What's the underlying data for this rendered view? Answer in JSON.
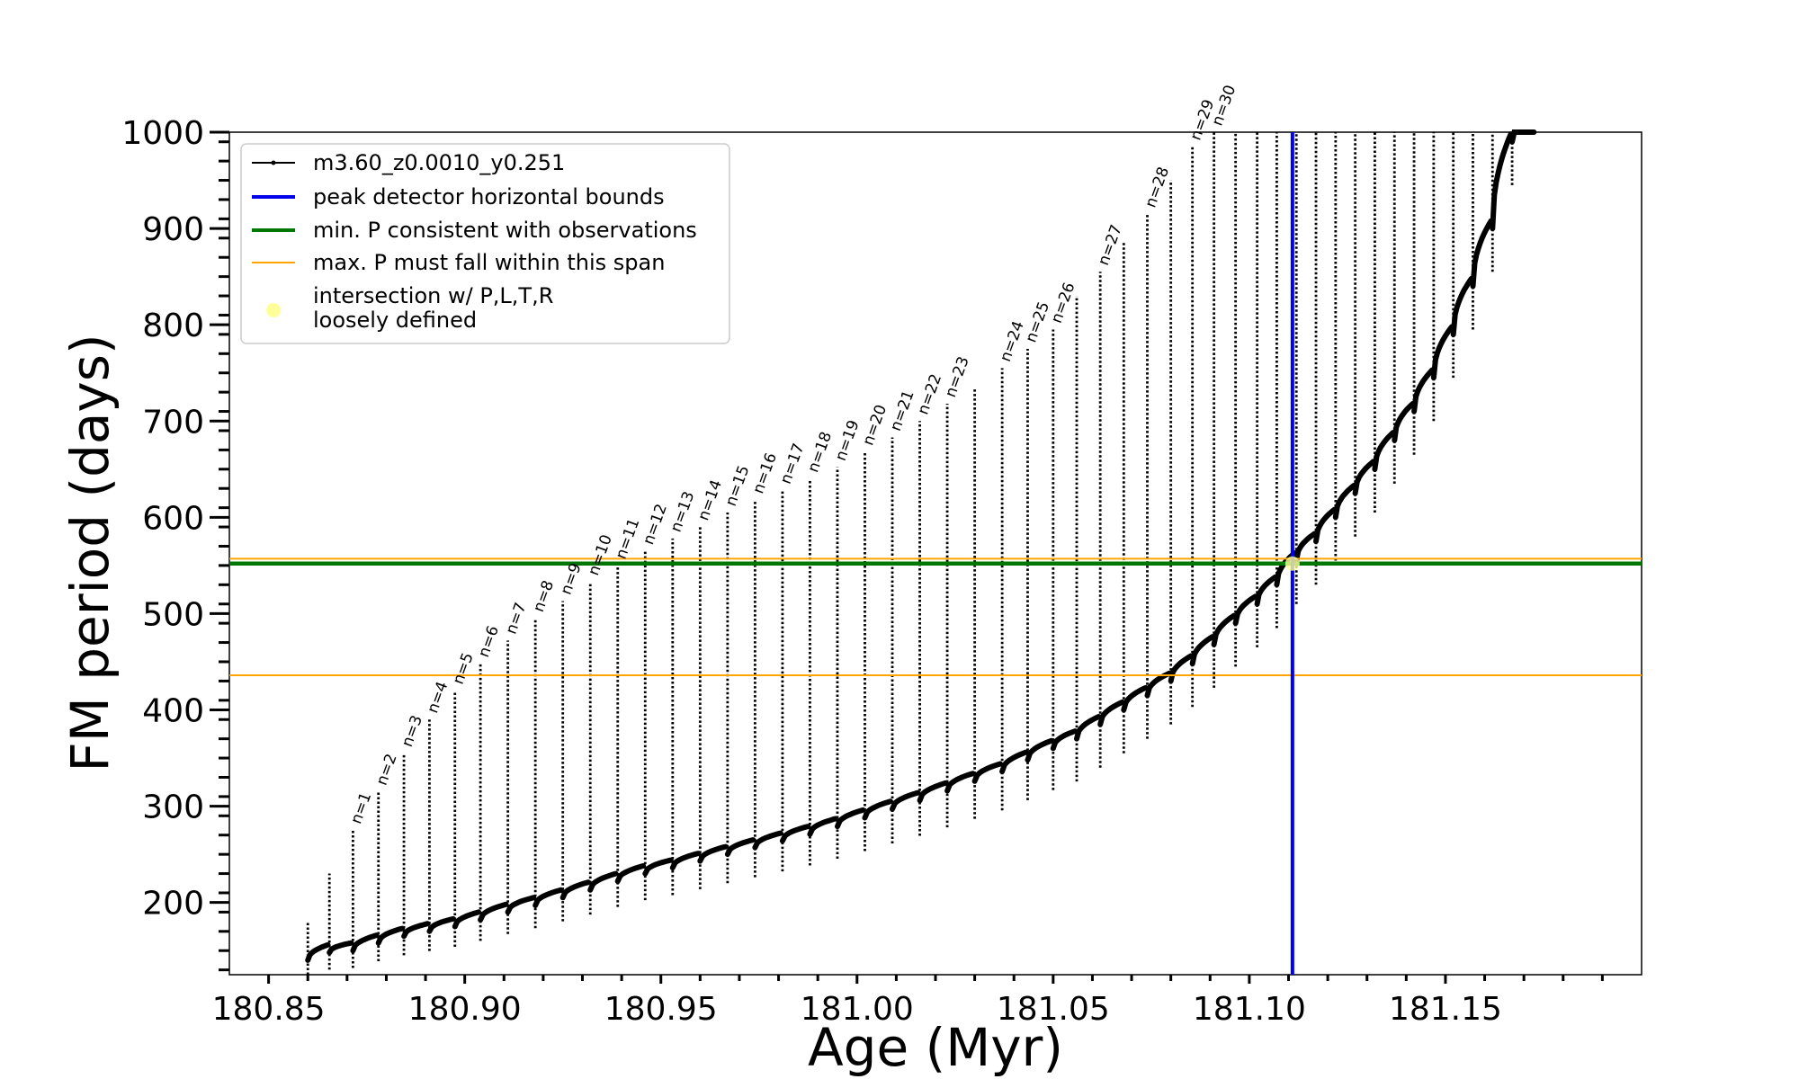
{
  "chart_data": {
    "type": "line",
    "xlabel": "Age (Myr)",
    "ylabel": "FM period (days)",
    "xlim": [
      180.84,
      181.2
    ],
    "ylim": [
      125,
      1000
    ],
    "xticks": [
      "180.85",
      "180.90",
      "180.95",
      "181.00",
      "181.05",
      "181.10",
      "181.15"
    ],
    "yticks": [
      "200",
      "300",
      "400",
      "500",
      "600",
      "700",
      "800",
      "900",
      "1000"
    ],
    "grid": false,
    "legend_position": "top-left",
    "series": [
      {
        "name": "m3.60_z0.0010_y0.251",
        "color": "#000000",
        "cycle_ages": [
          180.86,
          180.8655,
          180.8715,
          180.878,
          180.8845,
          180.891,
          180.8975,
          180.904,
          180.911,
          180.918,
          180.925,
          180.932,
          180.939,
          180.946,
          180.953,
          180.96,
          180.967,
          180.974,
          180.981,
          180.988,
          180.995,
          181.002,
          181.009,
          181.016,
          181.023,
          181.03,
          181.037,
          181.0435,
          181.05,
          181.056,
          181.062,
          181.068,
          181.074,
          181.08,
          181.0855,
          181.091,
          181.0965,
          181.102,
          181.107,
          181.112,
          181.117,
          181.122,
          181.127,
          181.132,
          181.137,
          181.142,
          181.147,
          181.152,
          181.157,
          181.162,
          181.167
        ],
        "cycle_peak_period": [
          180,
          230,
          275,
          315,
          355,
          390,
          420,
          448,
          472,
          495,
          513,
          533,
          550,
          565,
          578,
          590,
          605,
          618,
          628,
          640,
          652,
          668,
          683,
          700,
          718,
          735,
          755,
          775,
          795,
          830,
          855,
          885,
          915,
          950,
          985,
          1000,
          1000,
          1000,
          1000,
          1000,
          1000,
          1000,
          1000,
          1000,
          1000,
          1000,
          1000,
          1000,
          1000,
          1000,
          1000
        ],
        "cycle_baseline_period": [
          140,
          148,
          150,
          158,
          165,
          170,
          175,
          182,
          190,
          197,
          205,
          213,
          222,
          230,
          236,
          243,
          250,
          257,
          264,
          271,
          279,
          288,
          297,
          306,
          316,
          326,
          336,
          348,
          360,
          370,
          385,
          400,
          415,
          430,
          448,
          468,
          490,
          510,
          530,
          555,
          575,
          600,
          625,
          650,
          680,
          710,
          745,
          790,
          840,
          900,
          990
        ]
      }
    ],
    "peak_detector_horizontal_bounds": {
      "name": "peak detector horizontal bounds",
      "color": "#0000ee",
      "x": 181.111
    },
    "min_p_consistent": {
      "name": "min. P consistent with observations",
      "color": "#007700",
      "y": 552
    },
    "max_p_span": {
      "name": "max. P must fall within this span",
      "color": "#ffa500",
      "y_low": 436,
      "y_high": 557
    },
    "intersection": {
      "name": "intersection w/ P,L,T,R loosely defined",
      "color": "#ffff99",
      "x": 181.111,
      "y": 552
    },
    "mode_labels": [
      {
        "text": "n=1",
        "x": 180.8715,
        "y": 275
      },
      {
        "text": "n=2",
        "x": 180.878,
        "y": 315
      },
      {
        "text": "n=3",
        "x": 180.8845,
        "y": 355
      },
      {
        "text": "n=4",
        "x": 180.891,
        "y": 390
      },
      {
        "text": "n=5",
        "x": 180.8975,
        "y": 420
      },
      {
        "text": "n=6",
        "x": 180.904,
        "y": 448
      },
      {
        "text": "n=7",
        "x": 180.911,
        "y": 472
      },
      {
        "text": "n=8",
        "x": 180.918,
        "y": 495
      },
      {
        "text": "n=9",
        "x": 180.925,
        "y": 513
      },
      {
        "text": "n=10",
        "x": 180.932,
        "y": 533
      },
      {
        "text": "n=11",
        "x": 180.939,
        "y": 550
      },
      {
        "text": "n=12",
        "x": 180.946,
        "y": 565
      },
      {
        "text": "n=13",
        "x": 180.953,
        "y": 578
      },
      {
        "text": "n=14",
        "x": 180.96,
        "y": 590
      },
      {
        "text": "n=15",
        "x": 180.967,
        "y": 605
      },
      {
        "text": "n=16",
        "x": 180.974,
        "y": 618
      },
      {
        "text": "n=17",
        "x": 180.981,
        "y": 628
      },
      {
        "text": "n=18",
        "x": 180.988,
        "y": 640
      },
      {
        "text": "n=19",
        "x": 180.995,
        "y": 652
      },
      {
        "text": "n=20",
        "x": 181.002,
        "y": 668
      },
      {
        "text": "n=21",
        "x": 181.009,
        "y": 683
      },
      {
        "text": "n=22",
        "x": 181.016,
        "y": 700
      },
      {
        "text": "n=23",
        "x": 181.023,
        "y": 718
      },
      {
        "text": "n=24",
        "x": 181.037,
        "y": 755
      },
      {
        "text": "n=25",
        "x": 181.0435,
        "y": 775
      },
      {
        "text": "n=26",
        "x": 181.05,
        "y": 795
      },
      {
        "text": "n=27",
        "x": 181.062,
        "y": 855
      },
      {
        "text": "n=28",
        "x": 181.074,
        "y": 915
      },
      {
        "text": "n=29",
        "x": 181.0855,
        "y": 985
      },
      {
        "text": "n=30",
        "x": 181.091,
        "y": 1000
      }
    ]
  },
  "legend": {
    "series_label": "m3.60_z0.0010_y0.251",
    "blue_label": "peak detector horizontal bounds",
    "green_label": "min. P consistent with observations",
    "orange_label": "max. P must fall within this span",
    "intersection_line1": "intersection w/ P,L,T,R",
    "intersection_line2": "loosely defined"
  }
}
